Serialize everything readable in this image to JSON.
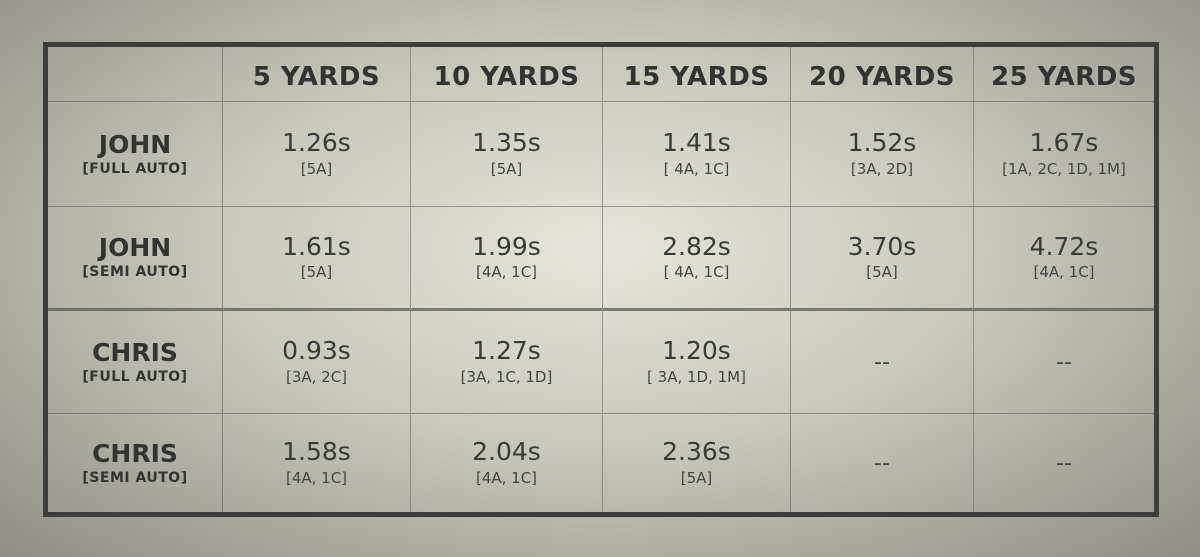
{
  "table": {
    "columns": [
      "",
      "5 YARDS",
      "10 YARDS",
      "15 YARDS",
      "20 YARDS",
      "25 YARDS"
    ],
    "rows": [
      {
        "name": "JOHN",
        "mode": "[FULL AUTO]",
        "cells": [
          {
            "time": "1.26s",
            "hits": "[5A]"
          },
          {
            "time": "1.35s",
            "hits": "[5A]"
          },
          {
            "time": "1.41s",
            "hits": "[ 4A, 1C]"
          },
          {
            "time": "1.52s",
            "hits": "[3A, 2D]"
          },
          {
            "time": "1.67s",
            "hits": "[1A, 2C, 1D, 1M]"
          }
        ]
      },
      {
        "name": "JOHN",
        "mode": "[SEMI AUTO]",
        "cells": [
          {
            "time": "1.61s",
            "hits": "[5A]"
          },
          {
            "time": "1.99s",
            "hits": "[4A, 1C]"
          },
          {
            "time": "2.82s",
            "hits": "[ 4A, 1C]"
          },
          {
            "time": "3.70s",
            "hits": "[5A]"
          },
          {
            "time": "4.72s",
            "hits": "[4A, 1C]"
          }
        ]
      },
      {
        "name": "CHRIS",
        "mode": "[FULL AUTO]",
        "cells": [
          {
            "time": "0.93s",
            "hits": "[3A, 2C]"
          },
          {
            "time": "1.27s",
            "hits": "[3A, 1C, 1D]"
          },
          {
            "time": "1.20s",
            "hits": "[ 3A, 1D, 1M]"
          },
          {
            "dash": "--"
          },
          {
            "dash": "--"
          }
        ]
      },
      {
        "name": "CHRIS",
        "mode": "[SEMI AUTO]",
        "cells": [
          {
            "time": "1.58s",
            "hits": "[4A, 1C]"
          },
          {
            "time": "2.04s",
            "hits": "[4A, 1C]"
          },
          {
            "time": "2.36s",
            "hits": "[5A]"
          },
          {
            "dash": "--"
          },
          {
            "dash": "--"
          }
        ]
      }
    ]
  }
}
